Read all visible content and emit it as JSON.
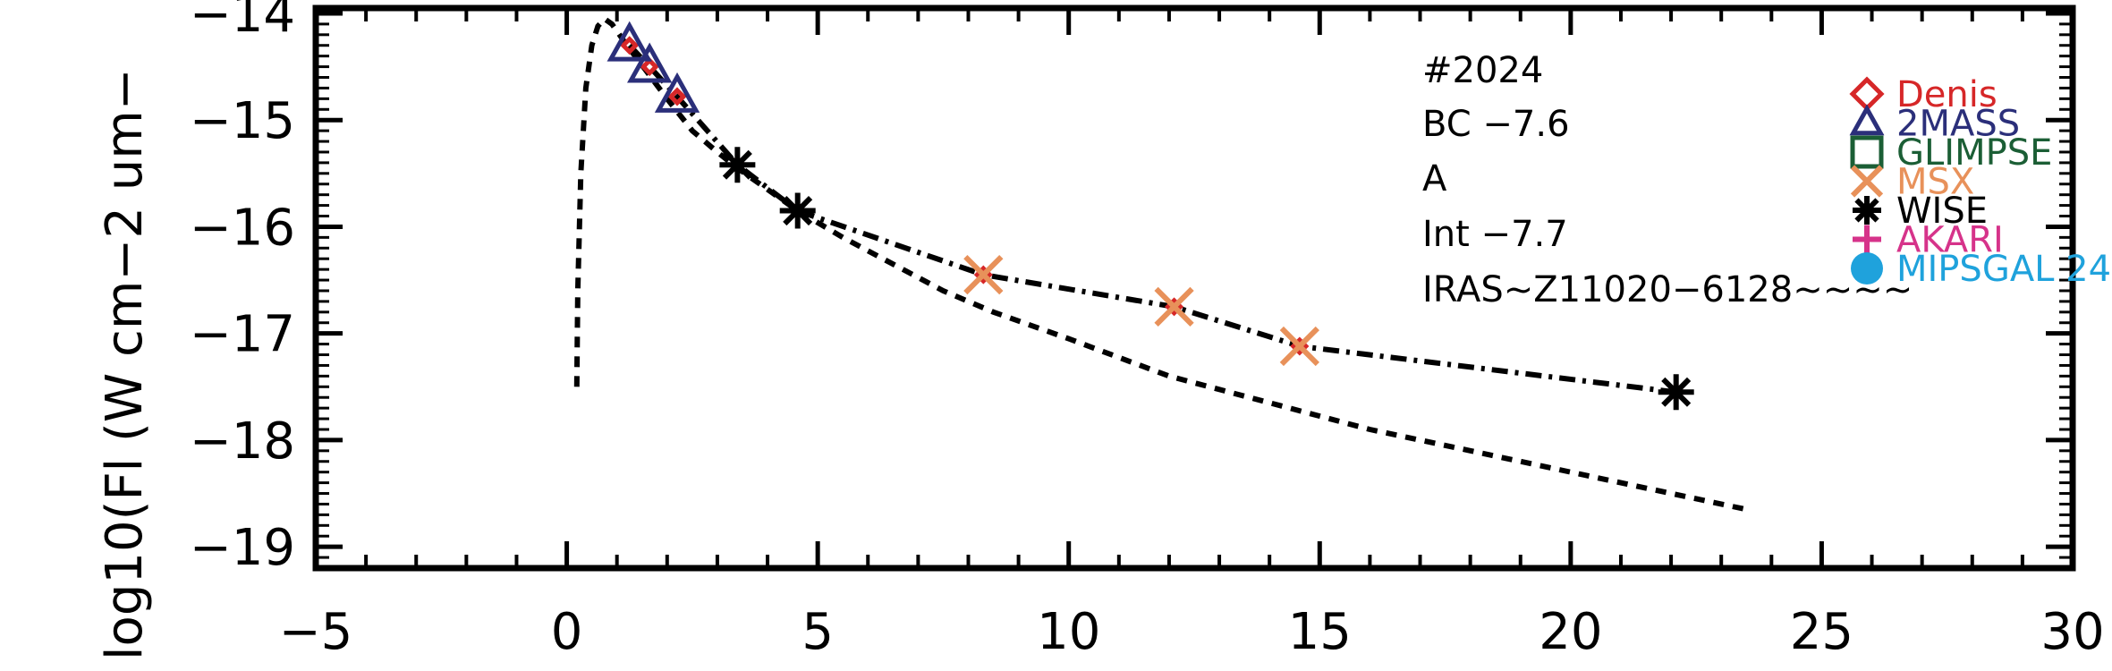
{
  "chart_data": {
    "type": "scatter",
    "title": "",
    "xlabel": "",
    "ylabel": "log10(Fl (W cm−2 um−",
    "xlim": [
      -5,
      30
    ],
    "ylim": [
      -19.2,
      -13.95
    ],
    "x_ticks": [
      {
        "value": -5,
        "label": "−5"
      },
      {
        "value": 0,
        "label": "0"
      },
      {
        "value": 5,
        "label": "5"
      },
      {
        "value": 10,
        "label": "10"
      },
      {
        "value": 15,
        "label": "15"
      },
      {
        "value": 20,
        "label": "20"
      },
      {
        "value": 25,
        "label": "25"
      },
      {
        "value": 30,
        "label": "30"
      }
    ],
    "y_ticks": [
      {
        "value": -14,
        "label": "−14"
      },
      {
        "value": -15,
        "label": "−15"
      },
      {
        "value": -16,
        "label": "−16"
      },
      {
        "value": -17,
        "label": "−17"
      },
      {
        "value": -18,
        "label": "−18"
      },
      {
        "value": -19,
        "label": "−19"
      }
    ],
    "annotations": [
      "#2024",
      "BC −7.6",
      "A",
      "Int −7.7",
      "IRAS~Z11020−6128~~~~"
    ],
    "legend": {
      "placement": "top-right",
      "entries": [
        {
          "label": "Denis",
          "color": "#d62728",
          "marker": "diamond"
        },
        {
          "label": "2MASS",
          "color": "#2b2f7a",
          "marker": "triangle"
        },
        {
          "label": "GLIMPSE",
          "color": "#1b5e35",
          "marker": "square"
        },
        {
          "label": "MSX",
          "color": "#e8915a",
          "marker": "x"
        },
        {
          "label": "WISE",
          "color": "#000000",
          "marker": "asterisk"
        },
        {
          "label": "AKARI",
          "color": "#d6338a",
          "marker": "plus"
        },
        {
          "label": "MIPSGAL 24",
          "color": "#1fa2dc",
          "marker": "circle"
        }
      ]
    },
    "series": [
      {
        "kind": "line",
        "style": "dotted",
        "x": [
          0.2,
          0.22,
          0.28,
          0.38,
          0.5,
          0.62,
          0.75,
          0.9,
          1.2,
          1.6,
          2.0,
          2.5,
          3.0,
          3.4,
          4.0,
          4.6,
          5.5,
          6.5,
          7.5,
          8.5,
          10,
          12,
          14,
          16,
          18,
          20,
          22,
          23.5
        ],
        "y": [
          -17.5,
          -16.6,
          -15.5,
          -14.7,
          -14.3,
          -14.12,
          -14.05,
          -14.1,
          -14.3,
          -14.55,
          -14.8,
          -15.1,
          -15.3,
          -15.45,
          -15.65,
          -15.85,
          -16.1,
          -16.35,
          -16.6,
          -16.8,
          -17.05,
          -17.4,
          -17.65,
          -17.9,
          -18.1,
          -18.3,
          -18.5,
          -18.65
        ]
      },
      {
        "kind": "line",
        "style": "dashdot",
        "x": [
          1.25,
          1.65,
          2.2,
          3.4,
          4.6,
          8.3,
          12.1,
          14.6,
          22.1
        ],
        "y": [
          -14.3,
          -14.5,
          -14.78,
          -15.42,
          -15.85,
          -16.45,
          -16.75,
          -17.12,
          -17.55
        ]
      },
      {
        "kind": "points",
        "marker": "diamond",
        "color": "#d62728",
        "small": true,
        "x": [
          1.25,
          1.65,
          2.2,
          3.4,
          4.6,
          8.3,
          12.1,
          14.6,
          22.1
        ],
        "y": [
          -14.3,
          -14.5,
          -14.78,
          -15.42,
          -15.85,
          -16.45,
          -16.75,
          -17.12,
          -17.55
        ]
      },
      {
        "kind": "points",
        "marker": "triangle",
        "color": "#2b2f7a",
        "x": [
          1.25,
          1.65,
          2.2
        ],
        "y": [
          -14.3,
          -14.5,
          -14.78
        ]
      },
      {
        "kind": "points",
        "marker": "asterisk",
        "color": "#000000",
        "x": [
          3.4,
          4.6,
          22.1
        ],
        "y": [
          -15.42,
          -15.85,
          -17.55
        ]
      },
      {
        "kind": "points",
        "marker": "x",
        "color": "#e8915a",
        "x": [
          8.3,
          12.1,
          14.6
        ],
        "y": [
          -16.45,
          -16.75,
          -17.12
        ]
      }
    ]
  }
}
